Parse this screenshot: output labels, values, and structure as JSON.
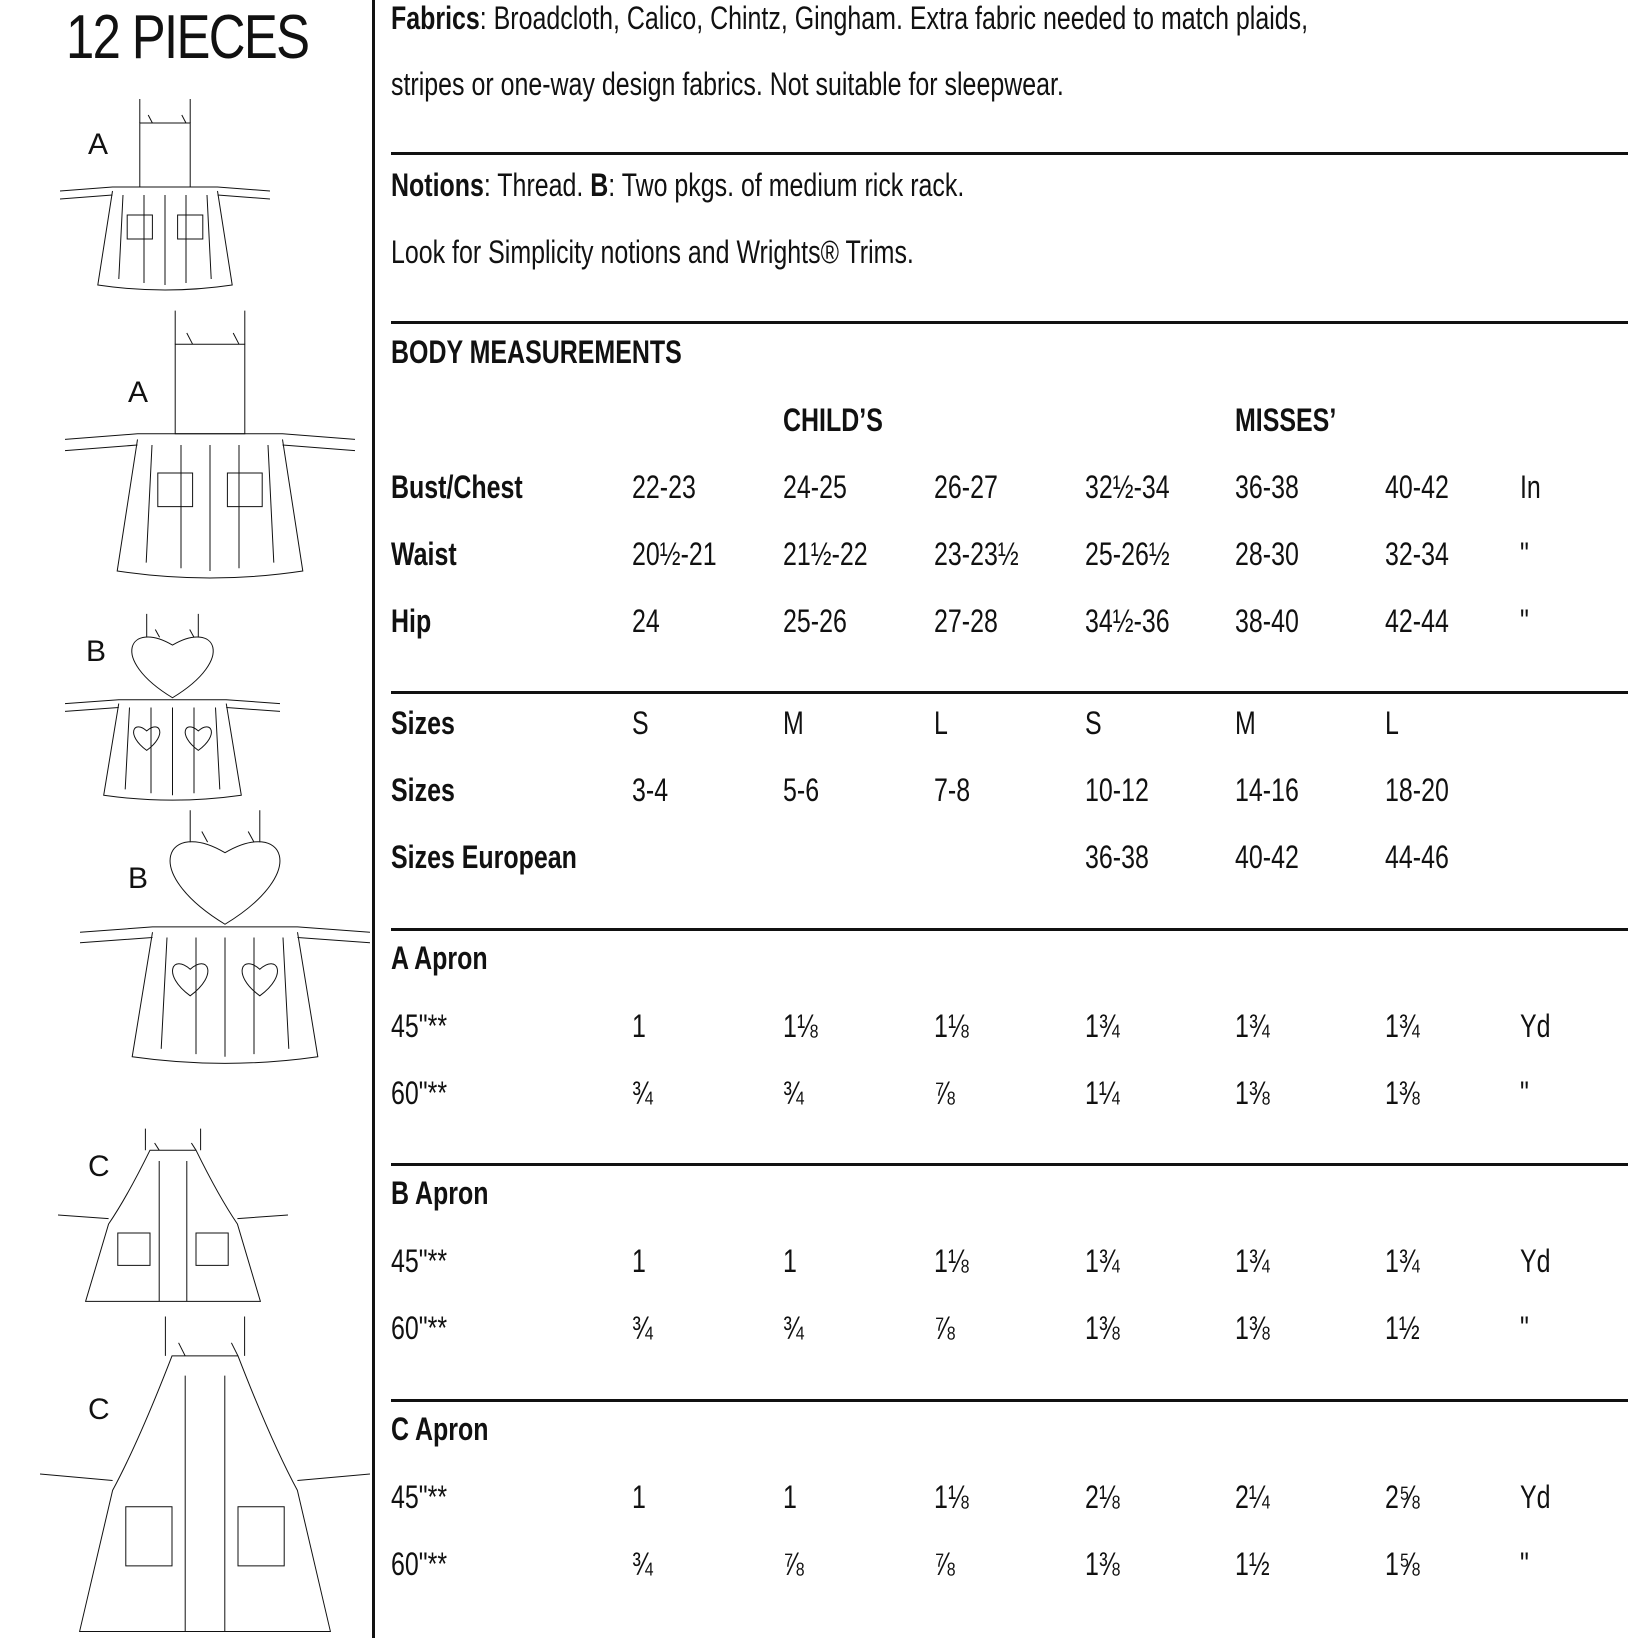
{
  "left_panel": {
    "pieces_title": "12 PIECES",
    "views": [
      {
        "label": "A",
        "style": "plain-small"
      },
      {
        "label": "A",
        "style": "plain-large"
      },
      {
        "label": "B",
        "style": "heart-small"
      },
      {
        "label": "B",
        "style": "heart-large"
      },
      {
        "label": "C",
        "style": "full-small"
      },
      {
        "label": "C",
        "style": "full-large"
      }
    ]
  },
  "fabrics": {
    "label": "Fabrics",
    "line1": ": Broadcloth, Calico, Chintz, Gingham. Extra fabric needed to match plaids,",
    "line2": "stripes or one-way design fabrics. Not suitable for sleepwear."
  },
  "notions": {
    "label": "Notions",
    "text1": ": Thread. ",
    "b_label": "B",
    "text2": ": Two pkgs. of medium rick rack.",
    "line2": "Look for Simplicity notions and Wrights® Trims."
  },
  "body": {
    "title": "BODY MEASUREMENTS",
    "group_childs": "CHILD’S",
    "group_misses": "MISSES’",
    "rows": [
      {
        "label": "Bust/Chest",
        "values": [
          "22-23",
          "24-25",
          "26-27",
          "32½-34",
          "36-38",
          "40-42"
        ],
        "unit": "In"
      },
      {
        "label": "Waist",
        "values": [
          "20½-21",
          "21½-22",
          "23-23½",
          "25-26½",
          "28-30",
          "32-34"
        ],
        "unit": "\""
      },
      {
        "label": "Hip",
        "values": [
          "24",
          "25-26",
          "27-28",
          "34½-36",
          "38-40",
          "42-44"
        ],
        "unit": "\""
      }
    ]
  },
  "sizes": {
    "rows": [
      {
        "label": "Sizes",
        "values": [
          "S",
          "M",
          "L",
          "S",
          "M",
          "L"
        ],
        "unit": ""
      },
      {
        "label": "Sizes",
        "values": [
          "3-4",
          "5-6",
          "7-8",
          "10-12",
          "14-16",
          "18-20"
        ],
        "unit": ""
      },
      {
        "label": "Sizes European",
        "values": [
          "",
          "",
          "",
          "36-38",
          "40-42",
          "44-46"
        ],
        "unit": ""
      }
    ]
  },
  "yardage": [
    {
      "title": "A Apron",
      "rows": [
        {
          "label": "45\"**",
          "values": [
            "1",
            "1⅛",
            "1⅛",
            "1¾",
            "1¾",
            "1¾"
          ],
          "unit": "Yd"
        },
        {
          "label": "60\"**",
          "values": [
            "¾",
            "¾",
            "⅞",
            "1¼",
            "1⅜",
            "1⅜"
          ],
          "unit": "\""
        }
      ]
    },
    {
      "title": "B Apron",
      "rows": [
        {
          "label": "45\"**",
          "values": [
            "1",
            "1",
            "1⅛",
            "1¾",
            "1¾",
            "1¾"
          ],
          "unit": "Yd"
        },
        {
          "label": "60\"**",
          "values": [
            "¾",
            "¾",
            "⅞",
            "1⅜",
            "1⅜",
            "1½"
          ],
          "unit": "\""
        }
      ]
    },
    {
      "title": "C Apron",
      "rows": [
        {
          "label": "45\"**",
          "values": [
            "1",
            "1",
            "1⅛",
            "2⅛",
            "2¼",
            "2⅝"
          ],
          "unit": "Yd"
        },
        {
          "label": "60\"**",
          "values": [
            "¾",
            "⅞",
            "⅞",
            "1⅜",
            "1½",
            "1⅝"
          ],
          "unit": "\""
        }
      ]
    }
  ]
}
